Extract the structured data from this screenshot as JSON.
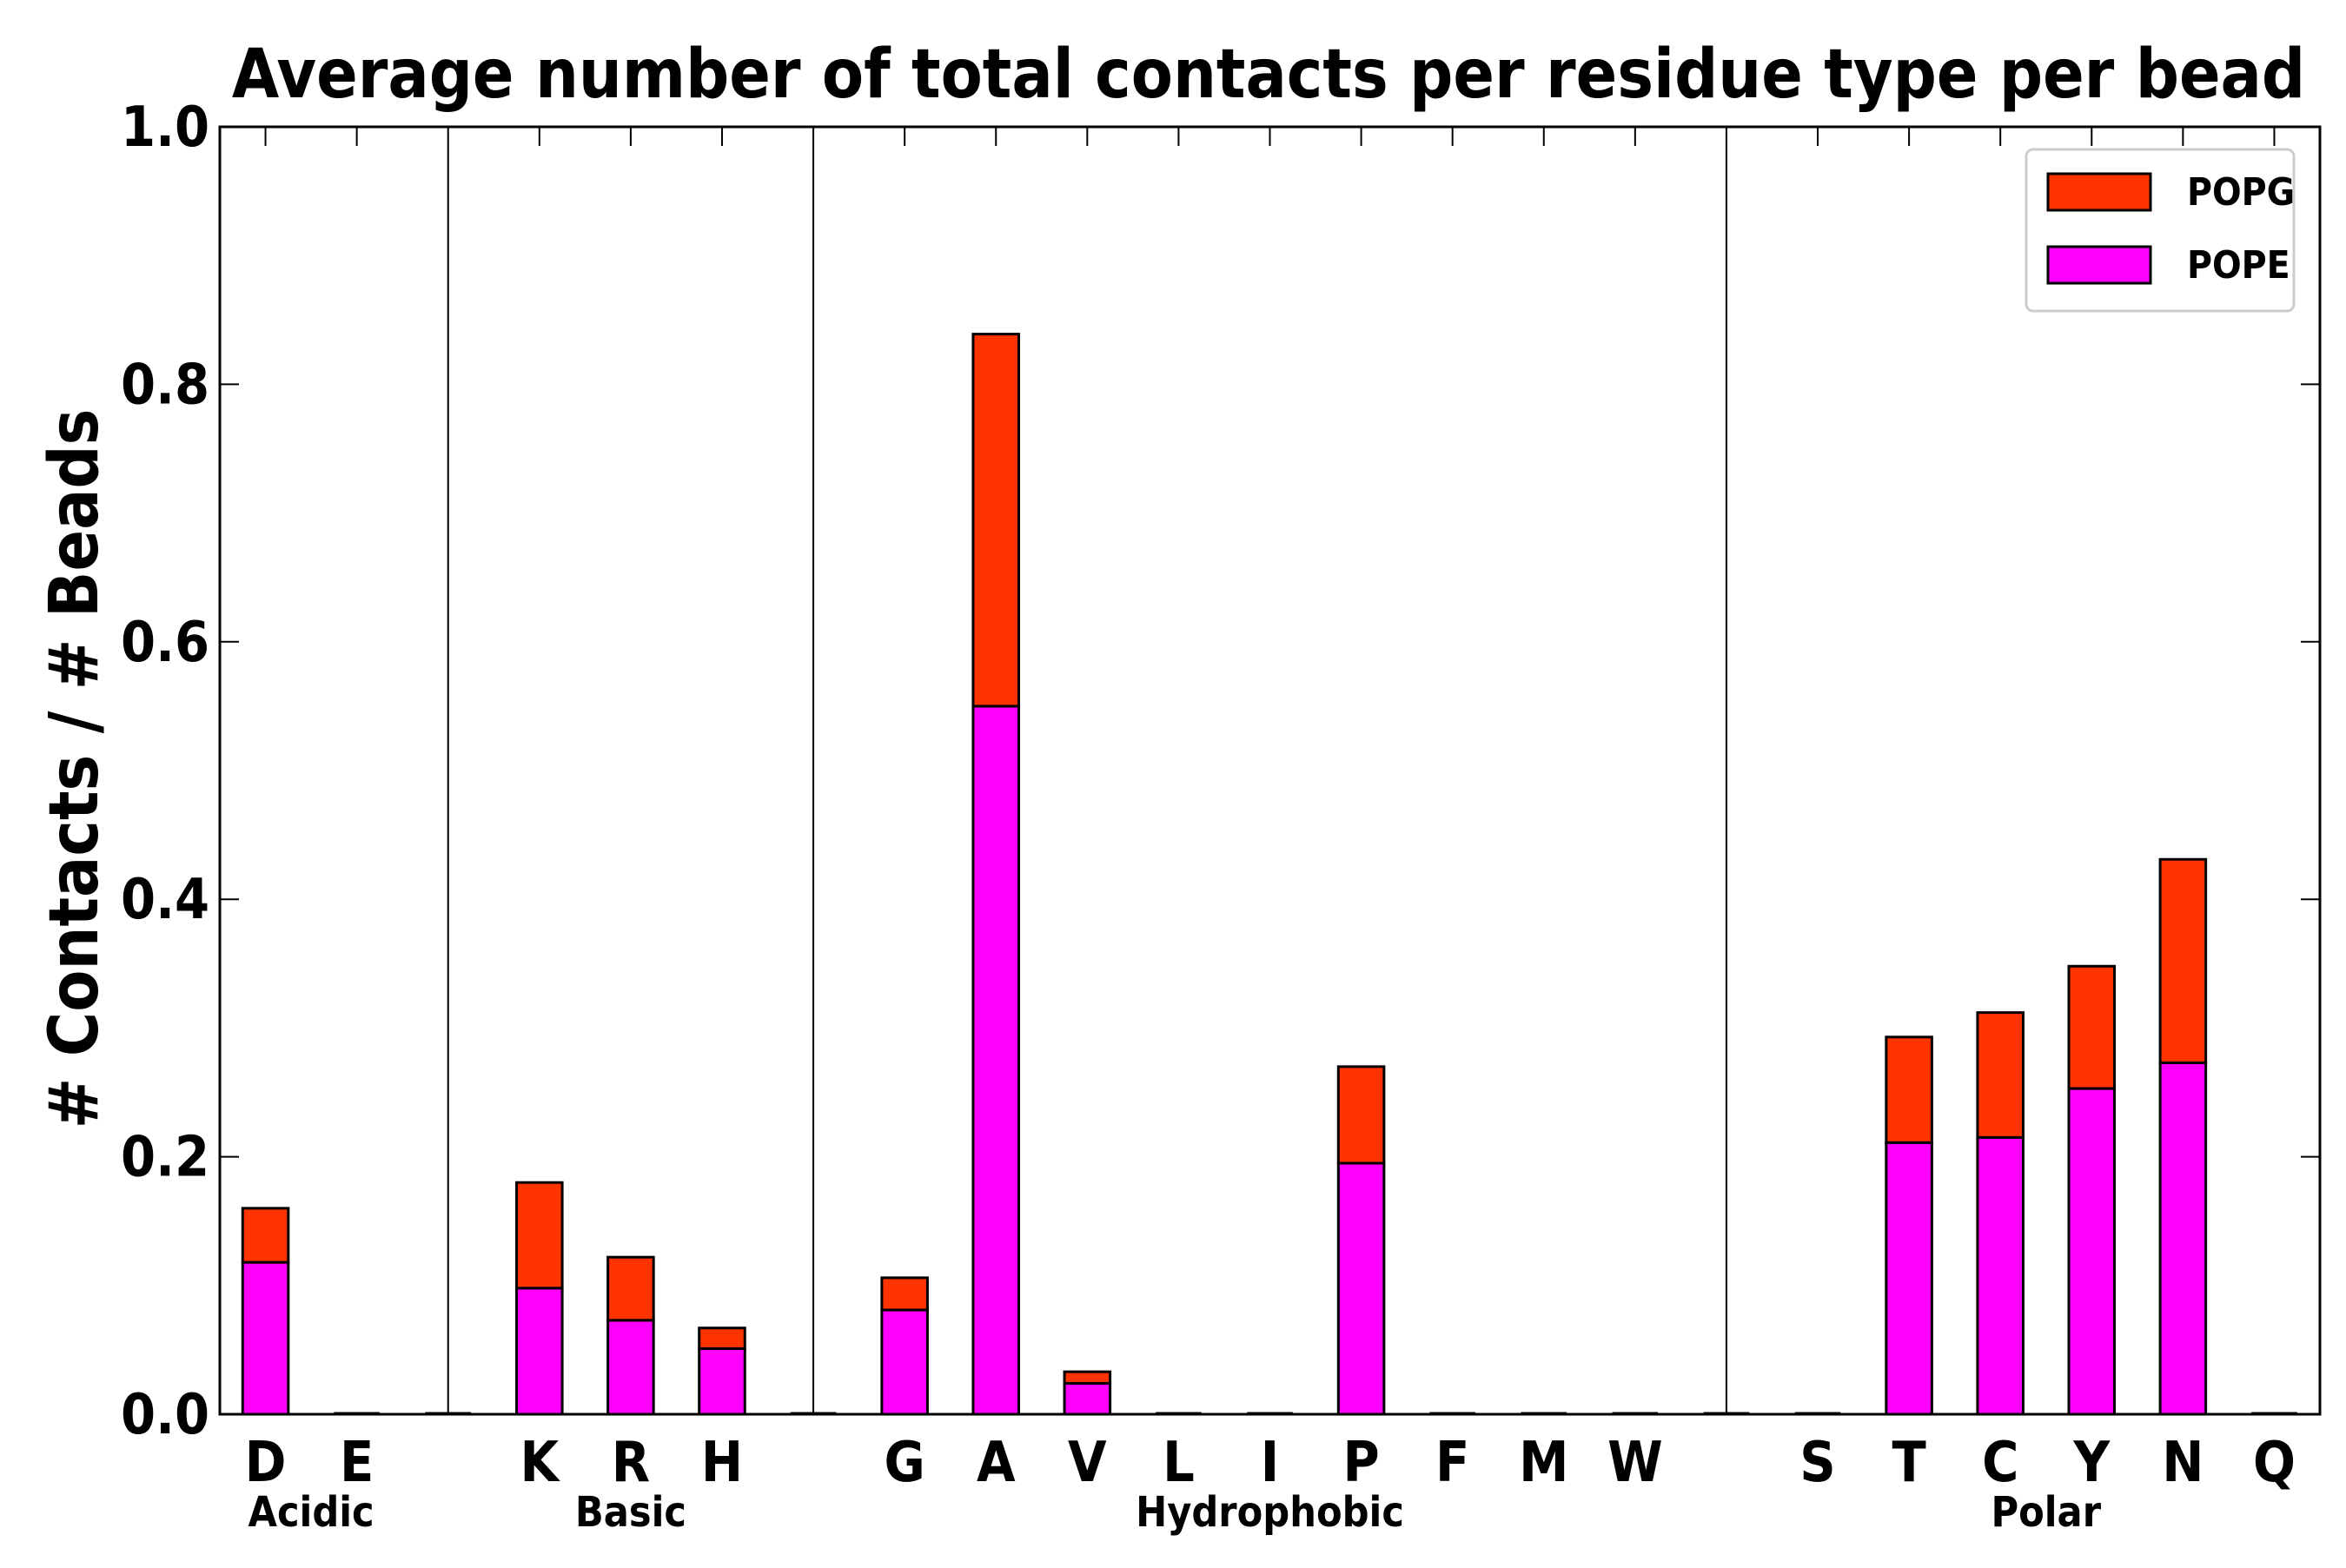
{
  "chart_data": {
    "type": "bar",
    "stacked": true,
    "title": "Average number of total contacts per residue type per bead",
    "xlabel": "",
    "ylabel": "# Contacts / # Beads",
    "ylim": [
      0,
      1.0
    ],
    "yticks": [
      "0.0",
      "0.2",
      "0.4",
      "0.6",
      "0.8",
      "1.0"
    ],
    "categories": [
      "D",
      "E",
      "",
      "K",
      "R",
      "H",
      "",
      "G",
      "A",
      "V",
      "L",
      "I",
      "P",
      "F",
      "M",
      "W",
      "",
      "S",
      "T",
      "C",
      "Y",
      "N",
      "Q"
    ],
    "groups": [
      {
        "label": "Acidic",
        "members": [
          "D",
          "E"
        ]
      },
      {
        "label": "Basic",
        "members": [
          "K",
          "R",
          "H"
        ]
      },
      {
        "label": "Hydrophobic",
        "members": [
          "G",
          "A",
          "V",
          "L",
          "I",
          "P",
          "F",
          "M",
          "W"
        ]
      },
      {
        "label": "Polar",
        "members": [
          "S",
          "T",
          "C",
          "Y",
          "N",
          "Q"
        ]
      }
    ],
    "series": [
      {
        "name": "POPE",
        "color": "#ff00ff",
        "values": [
          0.118,
          0,
          0,
          0.098,
          0.073,
          0.051,
          0,
          0.081,
          0.55,
          0.024,
          0,
          0,
          0.195,
          0,
          0,
          0,
          0,
          0,
          0.211,
          0.215,
          0.253,
          0.273,
          0
        ]
      },
      {
        "name": "POPG",
        "color": "#ff3300",
        "values": [
          0.042,
          0,
          0,
          0.082,
          0.049,
          0.016,
          0,
          0.025,
          0.289,
          0.009,
          0,
          0,
          0.075,
          0,
          0,
          0,
          0,
          0,
          0.082,
          0.097,
          0.095,
          0.158,
          0
        ]
      }
    ],
    "legend": {
      "position": "top-right",
      "entries": [
        "POPG",
        "POPE"
      ]
    },
    "grid": false
  }
}
